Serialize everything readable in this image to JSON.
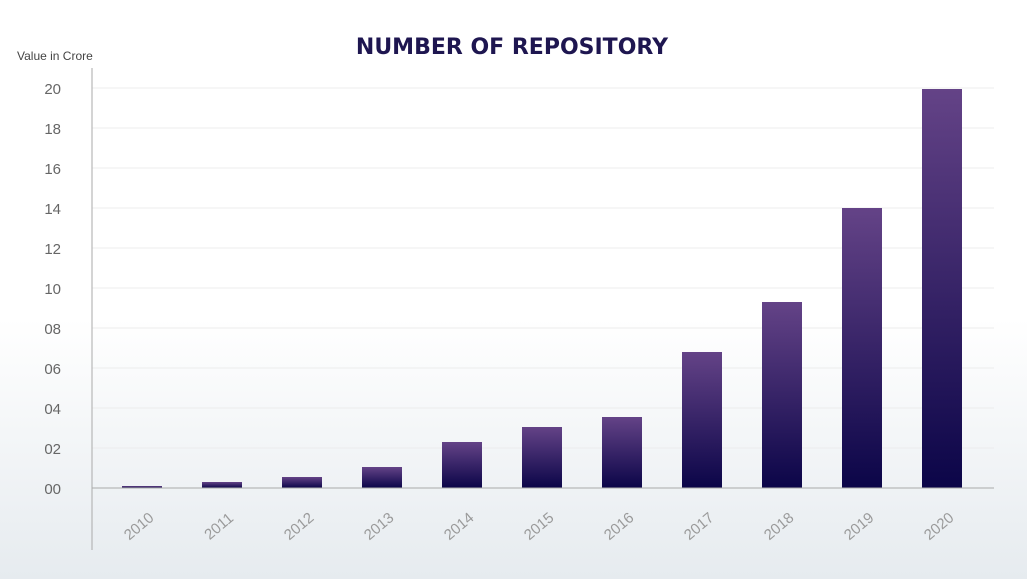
{
  "chart_data": {
    "type": "bar",
    "title": "NUMBER OF REPOSITORY",
    "ylabel": "Value in Crore",
    "xlabel": "",
    "categories": [
      "2010",
      "2011",
      "2012",
      "2013",
      "2014",
      "2015",
      "2016",
      "2017",
      "2018",
      "2019",
      "2020"
    ],
    "values": [
      0.1,
      0.3,
      0.55,
      1.05,
      2.3,
      3.05,
      3.55,
      6.8,
      9.3,
      14.0,
      19.95
    ],
    "ylim": [
      0,
      20
    ],
    "yticks": [
      "00",
      "02",
      "04",
      "06",
      "08",
      "10",
      "12",
      "14",
      "16",
      "18",
      "20"
    ],
    "grid": true,
    "legend": "none",
    "colors": {
      "title": "#1e1650",
      "bar_top": "#644387",
      "bar_bottom": "#0b0548",
      "grid": "#ececec",
      "axis": "#aaaaaa"
    }
  }
}
